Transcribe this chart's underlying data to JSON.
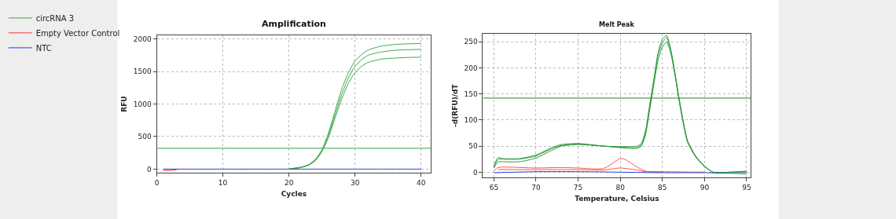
{
  "chart_data": [
    {
      "type": "line",
      "title": "Amplification",
      "xlabel": "Cycles",
      "ylabel": "RFU",
      "xlim": [
        0,
        41.5
      ],
      "xticks": [
        0,
        10,
        20,
        30,
        40
      ],
      "ylim": [
        -60,
        2060
      ],
      "yticks": [
        0,
        500,
        1000,
        1500,
        2000
      ],
      "grid": true,
      "line_style": "solid",
      "legend": "left",
      "x": [
        1,
        5,
        10,
        15,
        20,
        21,
        22,
        23,
        24,
        25,
        26,
        27,
        28,
        29,
        30,
        31,
        32,
        34,
        36,
        38,
        40
      ],
      "series": [
        {
          "name": "circRNA 3",
          "color": "#3aa64a",
          "values": [
            null,
            null,
            null,
            null,
            0,
            20,
            35,
            70,
            150,
            300,
            560,
            900,
            1230,
            1480,
            1660,
            1760,
            1830,
            1890,
            1915,
            1925,
            1930
          ]
        },
        {
          "color": "#3aa64a",
          "values": [
            null,
            null,
            null,
            null,
            0,
            10,
            30,
            65,
            140,
            280,
            520,
            840,
            1150,
            1400,
            1580,
            1680,
            1750,
            1800,
            1825,
            1835,
            1840
          ]
        },
        {
          "color": "#3aa64a",
          "values": [
            null,
            null,
            null,
            null,
            0,
            10,
            28,
            60,
            130,
            270,
            490,
            790,
            1080,
            1320,
            1480,
            1580,
            1640,
            1690,
            1705,
            1715,
            1720
          ]
        },
        {
          "name": "Empty Vector Control",
          "color": "#ff3030",
          "x": [
            1,
            2,
            3
          ],
          "values": [
            -20,
            -20,
            -10
          ]
        },
        {
          "name": "NTC",
          "color": "#2040e0",
          "values": [
            0,
            0,
            0,
            0,
            0,
            0,
            0,
            0,
            0,
            0,
            0,
            0,
            0,
            0,
            0,
            0,
            0,
            0,
            0,
            0,
            0
          ]
        }
      ],
      "ref_lines": [
        {
          "axis": "y",
          "value": 320,
          "color": "#3aa64a"
        }
      ]
    },
    {
      "type": "line",
      "title": "Melt Peak",
      "xlabel": "Temperature, Celsius",
      "ylabel": "-d(RFU)/dT",
      "xlim": [
        63.7,
        95.5
      ],
      "xticks": [
        65,
        70,
        75,
        80,
        85,
        90,
        95
      ],
      "ylim": [
        -10,
        265
      ],
      "yticks": [
        0,
        50,
        100,
        150,
        200,
        250
      ],
      "grid": true,
      "line_style": "solid",
      "series": [
        {
          "color": "#2e9a3e",
          "x": [
            65,
            65.5,
            66,
            68,
            70,
            72,
            73,
            75,
            78,
            80,
            82,
            82.5,
            83,
            83.5,
            84,
            84.5,
            85,
            85.5,
            86,
            86.5,
            87,
            88,
            89,
            90,
            91,
            93,
            95
          ],
          "values": [
            12,
            28,
            26,
            26,
            33,
            48,
            53,
            55,
            50,
            49,
            50,
            55,
            80,
            130,
            180,
            230,
            255,
            262,
            235,
            190,
            140,
            60,
            30,
            12,
            0,
            0,
            0
          ]
        },
        {
          "color": "#2e9a3e",
          "x": [
            65,
            65.5,
            66,
            68,
            70,
            72,
            73,
            75,
            78,
            80,
            82,
            82.5,
            83,
            83.5,
            84,
            84.5,
            85,
            85.5,
            86,
            86.5,
            87,
            88,
            89,
            90,
            91,
            93,
            95
          ],
          "values": [
            10,
            25,
            25,
            25,
            31,
            46,
            51,
            54,
            50,
            48,
            47,
            52,
            75,
            125,
            175,
            225,
            248,
            258,
            232,
            188,
            138,
            58,
            29,
            11,
            0,
            0,
            1
          ]
        },
        {
          "color": "#2e9a3e",
          "x": [
            65,
            65.5,
            66,
            68,
            70,
            72,
            73,
            75,
            78,
            80,
            82,
            82.5,
            83,
            83.5,
            84,
            84.5,
            85,
            85.5,
            86,
            86.5,
            87,
            88,
            89,
            90,
            91,
            93,
            95
          ],
          "values": [
            8,
            20,
            20,
            20,
            27,
            43,
            50,
            53,
            50,
            47,
            46,
            50,
            72,
            120,
            170,
            215,
            240,
            250,
            228,
            185,
            135,
            57,
            28,
            11,
            0,
            0,
            2
          ]
        },
        {
          "color": "#ff5050",
          "x": [
            65,
            65.5,
            70,
            73,
            75,
            78,
            80,
            80.5,
            82,
            83,
            85,
            90
          ],
          "values": [
            3,
            9,
            8,
            9,
            8,
            7,
            26,
            25,
            10,
            2,
            1,
            0
          ]
        },
        {
          "color": "#ff5050",
          "x": [
            65.5,
            70,
            75,
            78,
            80,
            82,
            83,
            85
          ],
          "values": [
            5,
            5,
            5,
            4,
            8,
            4,
            1,
            0
          ]
        },
        {
          "color": "#2040e0",
          "x": [
            65,
            70,
            75,
            80,
            85,
            90,
            95
          ],
          "values": [
            -1,
            1,
            1,
            0,
            -1,
            -1,
            -3
          ]
        }
      ],
      "ref_lines": [
        {
          "axis": "y",
          "value": 142,
          "color": "#2e7d32"
        }
      ]
    }
  ]
}
